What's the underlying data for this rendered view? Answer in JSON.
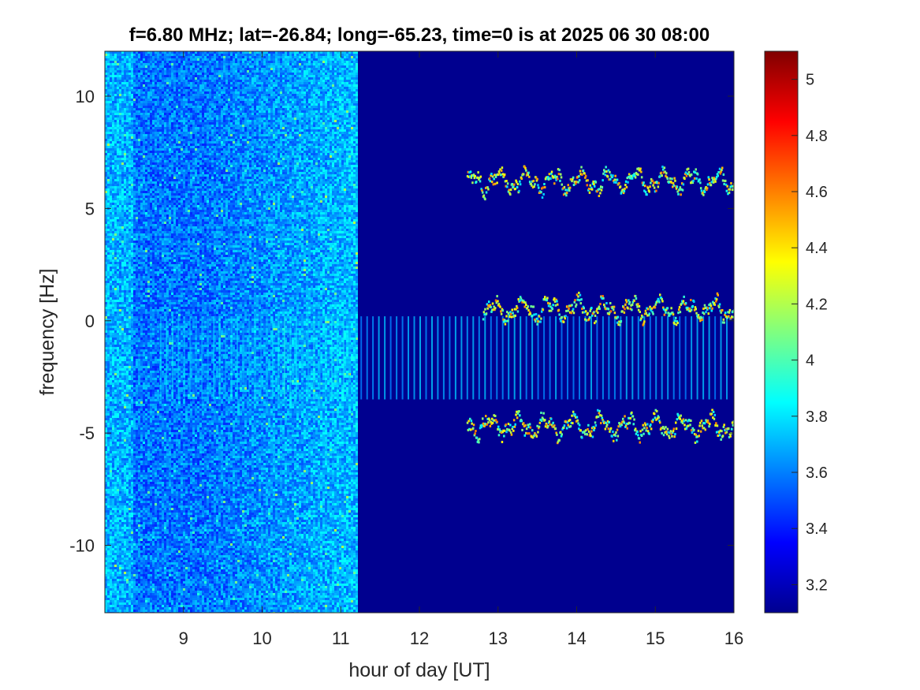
{
  "chart_data": {
    "type": "heatmap",
    "title": "f=6.80 MHz;  lat=-26.84; long=-65.23, time=0 is at 2025 06 30 08:00",
    "xlabel": "hour of day [UT]",
    "ylabel": "frequency [Hz]",
    "xlim": [
      8,
      16
    ],
    "ylim": [
      -13,
      12
    ],
    "xticks": [
      9,
      10,
      11,
      12,
      13,
      14,
      15,
      16
    ],
    "yticks": [
      -10,
      -5,
      0,
      5,
      10
    ],
    "colorbar": {
      "colormap": "jet",
      "clim": [
        3.1,
        5.1
      ],
      "ticks": [
        3.2,
        3.4,
        3.6,
        3.8,
        4,
        4.2,
        4.4,
        4.6,
        4.8,
        5
      ]
    },
    "noise_region_end_hour": 11.2,
    "traces": [
      {
        "start_hour": 12.6,
        "end_hour": 16,
        "center_hz": 6.2
      },
      {
        "start_hour": 12.8,
        "end_hour": 16,
        "center_hz": 0.5
      },
      {
        "start_hour": 12.6,
        "end_hour": 16,
        "center_hz": -4.7
      }
    ],
    "pulse_band_hz": [
      -3.5,
      0.2
    ]
  }
}
